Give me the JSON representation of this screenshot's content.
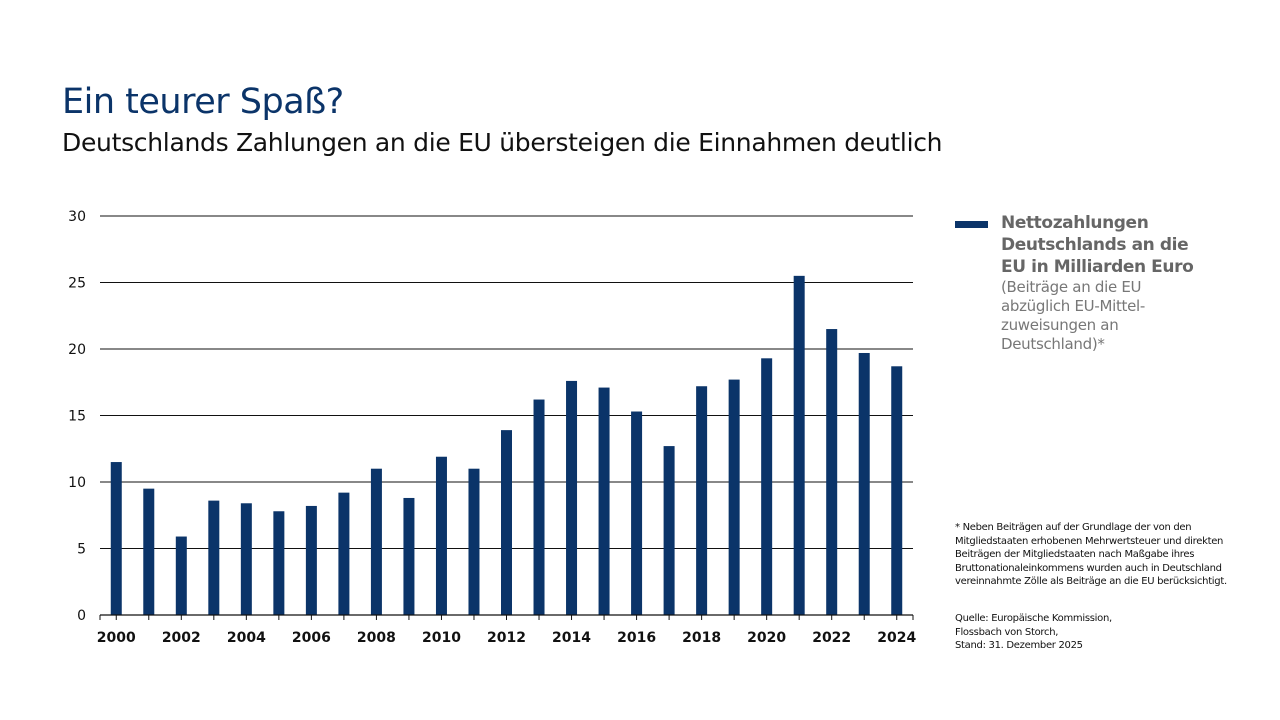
{
  "header": {
    "title": "Ein teurer Spaß?",
    "subtitle": "Deutschlands Zahlungen an die EU übersteigen die Einnahmen deutlich"
  },
  "legend": {
    "title": "Nettozahlungen Deutschlands an die EU in Milliarden Euro",
    "note": "(Beiträge an die EU abzüglich EU-Mittel-zuweisungen an Deutschland)*"
  },
  "footnote": "* Neben Beiträgen auf der Grundlage der von den Mitgliedstaaten erhobenen Mehrwertsteuer und direkten Beiträgen der Mitgliedstaaten nach Maßgabe ihres Bruttonationaleinkommens wurden auch in Deutschland vereinnahmte Zölle als Beiträge an die EU berücksichtigt.",
  "source": "Quelle: Europäische Kommission,\nFlossbach von Storch,\nStand: 31. Dezember 2025",
  "colors": {
    "bar": "#0b3469"
  },
  "chart_data": {
    "type": "bar",
    "title": "Ein teurer Spaß?",
    "xlabel": "",
    "ylabel": "Nettozahlungen in Milliarden Euro",
    "categories": [
      "2000",
      "2001",
      "2002",
      "2003",
      "2004",
      "2005",
      "2006",
      "2007",
      "2008",
      "2009",
      "2010",
      "2011",
      "2012",
      "2013",
      "2014",
      "2015",
      "2016",
      "2017",
      "2018",
      "2019",
      "2020",
      "2021",
      "2022",
      "2023",
      "2024"
    ],
    "values": [
      11.5,
      9.5,
      5.9,
      8.6,
      8.4,
      7.8,
      8.2,
      9.2,
      11.0,
      8.8,
      11.9,
      11.0,
      13.9,
      16.2,
      17.6,
      17.1,
      15.3,
      12.7,
      17.2,
      17.7,
      19.3,
      25.5,
      21.5,
      19.7,
      18.7
    ],
    "x_tick_labels": [
      "2000",
      "2002",
      "2004",
      "2006",
      "2008",
      "2010",
      "2012",
      "2014",
      "2016",
      "2018",
      "2020",
      "2022",
      "2024"
    ],
    "y_ticks": [
      0,
      5,
      10,
      15,
      20,
      25,
      30
    ],
    "ylim": [
      0,
      30
    ],
    "grid": true,
    "legend_position": "right"
  }
}
